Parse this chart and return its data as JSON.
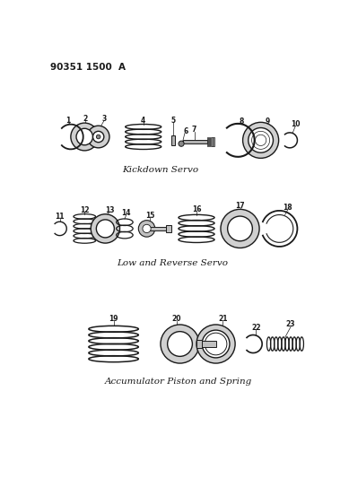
{
  "title_code": "90351 1500  A",
  "bg_color": "#ffffff",
  "line_color": "#1a1a1a",
  "section1_label": "Kickdown Servo",
  "section2_label": "Low and Reverse Servo",
  "section3_label": "Accumulator Piston and Spring",
  "fig_width": 3.89,
  "fig_height": 5.33,
  "dpi": 100
}
